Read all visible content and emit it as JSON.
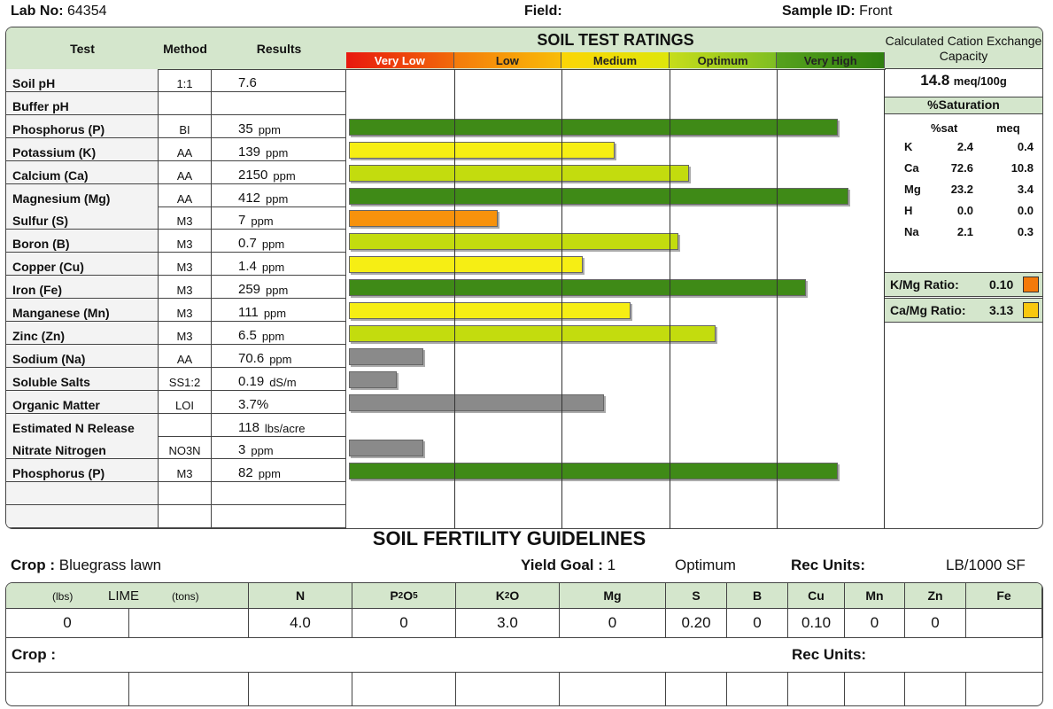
{
  "header": {
    "lab_no_label": "Lab No:",
    "lab_no": "64354",
    "field_label": "Field:",
    "field_value": "",
    "sample_id_label": "Sample ID:",
    "sample_id": "Front"
  },
  "table": {
    "col_test": "Test",
    "col_method": "Method",
    "col_results": "Results",
    "rows": [
      {
        "test": "Soil pH",
        "method": "1:1",
        "value": "7.6",
        "unit": "",
        "rating": null,
        "bar": null
      },
      {
        "test": "Buffer pH",
        "method": "",
        "value": "",
        "unit": "",
        "rating": null,
        "bar": null
      },
      {
        "test": "Phosphorus (P)",
        "method": "BI",
        "value": "35",
        "unit": "ppm",
        "rating": "Very High",
        "bar": 0.92
      },
      {
        "test": "Potassium (K)",
        "method": "AA",
        "value": "139",
        "unit": "ppm",
        "rating": "Medium",
        "bar": 0.5
      },
      {
        "test": "Calcium (Ca)",
        "method": "AA",
        "value": "2150",
        "unit": "ppm",
        "rating": "Optimum",
        "bar": 0.64
      },
      {
        "test": "Magnesium (Mg)",
        "method": "AA",
        "value": "412",
        "unit": "ppm",
        "rating": "Very High",
        "bar": 0.94
      },
      {
        "test": "Sulfur (S)",
        "method": "M3",
        "value": "7",
        "unit": "ppm",
        "rating": "Low",
        "bar": 0.28
      },
      {
        "test": "Boron (B)",
        "method": "M3",
        "value": "0.7",
        "unit": "ppm",
        "rating": "Optimum",
        "bar": 0.62
      },
      {
        "test": "Copper (Cu)",
        "method": "M3",
        "value": "1.4",
        "unit": "ppm",
        "rating": "Medium",
        "bar": 0.44
      },
      {
        "test": "Iron (Fe)",
        "method": "M3",
        "value": "259",
        "unit": "ppm",
        "rating": "Very High",
        "bar": 0.86
      },
      {
        "test": "Manganese (Mn)",
        "method": "M3",
        "value": "111",
        "unit": "ppm",
        "rating": "Medium",
        "bar": 0.53
      },
      {
        "test": "Zinc (Zn)",
        "method": "M3",
        "value": "6.5",
        "unit": "ppm",
        "rating": "Optimum",
        "bar": 0.69
      },
      {
        "test": "Sodium (Na)",
        "method": "AA",
        "value": "70.6",
        "unit": "ppm",
        "rating": "gray",
        "bar": 0.14
      },
      {
        "test": "Soluble Salts",
        "method": "SS1:2",
        "value": "0.19",
        "unit": "dS/m",
        "rating": "gray",
        "bar": 0.09
      },
      {
        "test": "Organic Matter",
        "method": "LOI",
        "value": "3.7%",
        "unit": "",
        "rating": "gray",
        "bar": 0.48
      },
      {
        "test": "Estimated N Release",
        "method": "",
        "value": "118",
        "unit": "lbs/acre",
        "rating": null,
        "bar": null
      },
      {
        "test": "Nitrate Nitrogen",
        "method": "NO3N",
        "value": "3",
        "unit": "ppm",
        "rating": "gray",
        "bar": 0.14
      },
      {
        "test": "Phosphorus (P)",
        "method": "M3",
        "value": "82",
        "unit": "ppm",
        "rating": "Very High",
        "bar": 0.92
      },
      {
        "test": "",
        "method": "",
        "value": "",
        "unit": "",
        "rating": null,
        "bar": null
      }
    ]
  },
  "ratings": {
    "title": "SOIL TEST RATINGS",
    "levels": [
      {
        "label": "Very Low",
        "color": "#e8180e",
        "color2": "#f26a0a"
      },
      {
        "label": "Low",
        "color": "#f47a0a",
        "color2": "#f9bc08"
      },
      {
        "label": "Medium",
        "color": "#fbd506",
        "color2": "#dfe60a"
      },
      {
        "label": "Optimum",
        "color": "#c6dd1a",
        "color2": "#7fbe22"
      },
      {
        "label": "Very High",
        "color": "#56a21c",
        "color2": "#2f7f10"
      }
    ],
    "bar_colors": {
      "Very High": "#3f8a17",
      "Optimum": "#c3dc0e",
      "Medium": "#f6ee14",
      "Low": "#f7920c",
      "gray": "#8a8a8a"
    }
  },
  "cec": {
    "title": "Calculated Cation Exchange Capacity",
    "value": "14.8",
    "unit": "meq/100g",
    "saturation_title": "%Saturation",
    "col_sat": "%sat",
    "col_meq": "meq",
    "rows": [
      {
        "ion": "K",
        "sat": "2.4",
        "meq": "0.4"
      },
      {
        "ion": "Ca",
        "sat": "72.6",
        "meq": "10.8"
      },
      {
        "ion": "Mg",
        "sat": "23.2",
        "meq": "3.4"
      },
      {
        "ion": "H",
        "sat": "0.0",
        "meq": "0.0"
      },
      {
        "ion": "Na",
        "sat": "2.1",
        "meq": "0.3"
      }
    ],
    "kmg_label": "K/Mg Ratio:",
    "kmg_value": "0.10",
    "kmg_color": "#f47a0a",
    "camg_label": "Ca/Mg Ratio:",
    "camg_value": "3.13",
    "camg_color": "#f9c80e"
  },
  "guidelines": {
    "title": "SOIL FERTILITY GUIDELINES",
    "crop_label": "Crop :",
    "crop": "Bluegrass lawn",
    "yield_label": "Yield Goal :",
    "yield_value": "1",
    "yield_level": "Optimum",
    "rec_units_label": "Rec Units:",
    "rec_units": "LB/1000 SF",
    "lime_lbs": "(lbs)",
    "lime_label": "LIME",
    "lime_tons": "(tons)",
    "cols": [
      {
        "label": "N",
        "value": "4.0"
      },
      {
        "label": "P",
        "sub1": "2",
        "label2": "O",
        "sub2": "5",
        "value": "0"
      },
      {
        "label": "K",
        "sub1": "2",
        "label2": "O",
        "value": "3.0"
      },
      {
        "label": "Mg",
        "value": "0"
      },
      {
        "label": "S",
        "value": "0.20"
      },
      {
        "label": "B",
        "value": "0"
      },
      {
        "label": "Cu",
        "value": "0.10"
      },
      {
        "label": "Mn",
        "value": "0"
      },
      {
        "label": "Zn",
        "value": "0"
      },
      {
        "label": "Fe",
        "value": ""
      }
    ],
    "lime_value_lbs": "0",
    "lime_value_tons": "",
    "crop2_label": "Crop :",
    "rec_units2_label": "Rec Units:"
  }
}
